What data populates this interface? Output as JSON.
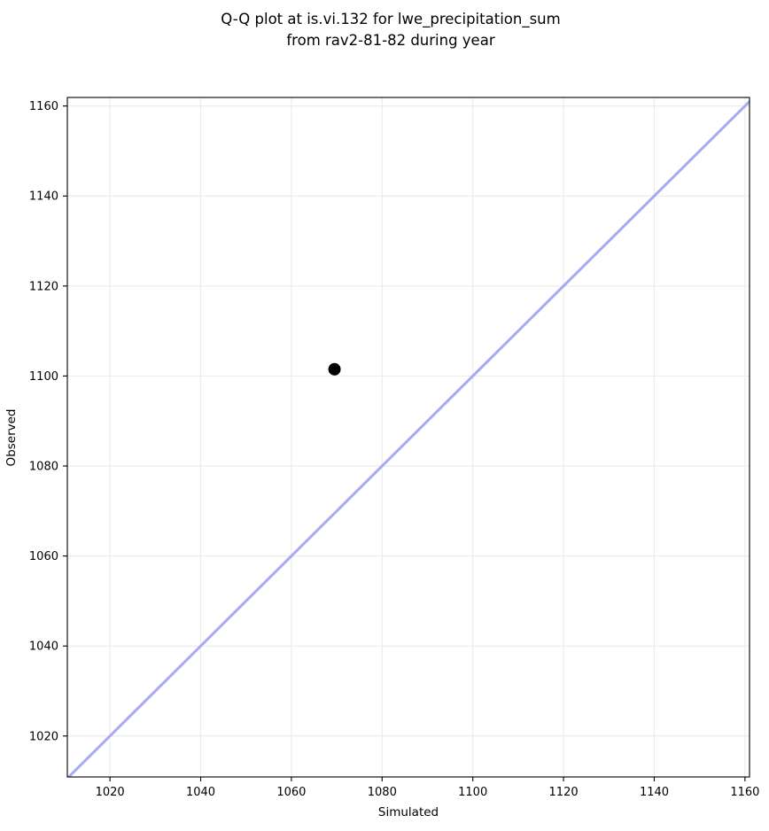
{
  "figure": {
    "title_line1": "Q-Q plot at is.vi.132 for lwe_precipitation_sum",
    "title_line2": "from rav2-81-82 during year"
  },
  "chart_data": {
    "type": "scatter",
    "title": "Q-Q plot at is.vi.132 for lwe_precipitation_sum\nfrom rav2-81-82 during year",
    "xlabel": "Simulated",
    "ylabel": "Observed",
    "xlim": [
      1010.6,
      1161.0
    ],
    "ylim": [
      1010.9,
      1161.9
    ],
    "xticks": [
      1020,
      1040,
      1060,
      1080,
      1100,
      1120,
      1140,
      1160
    ],
    "yticks": [
      1020,
      1040,
      1060,
      1080,
      1100,
      1120,
      1140,
      1160
    ],
    "grid": true,
    "legend": false,
    "points": [
      {
        "simulated": 1069.5,
        "observed": 1101.5
      }
    ],
    "identity_line": {
      "equation": "y = x",
      "color": "#a5abf3",
      "width": 3
    },
    "point_style": {
      "color": "#000000",
      "radius": 7
    },
    "grid_color": "#ececec",
    "spine_color": "#000000",
    "background": "#ffffff"
  }
}
